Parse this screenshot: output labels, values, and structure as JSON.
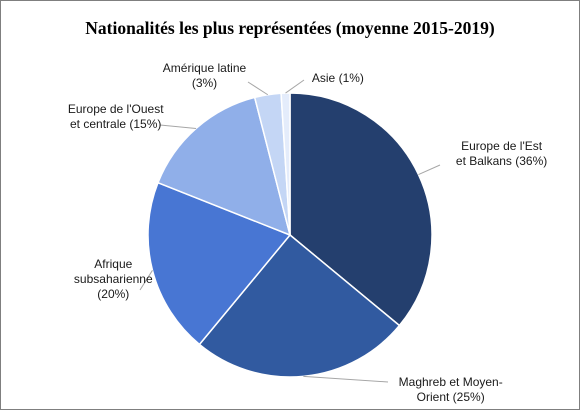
{
  "chart_data": {
    "type": "pie",
    "title": "Nationalités les plus représentées (moyenne 2015-2019)",
    "unit": "%",
    "slices": [
      {
        "name": "Europe de l'Est et Balkans",
        "value": 36,
        "label_lines": [
          "Europe de l'Est",
          "et Balkans (36%)"
        ],
        "color": "#243f6e"
      },
      {
        "name": "Maghreb et Moyen-Orient",
        "value": 25,
        "label_lines": [
          "Maghreb et Moyen-",
          "Orient (25%)"
        ],
        "color": "#315aa0"
      },
      {
        "name": "Afrique subsaharienne",
        "value": 20,
        "label_lines": [
          "Afrique",
          "subsaharienne",
          "(20%)"
        ],
        "color": "#4876d3"
      },
      {
        "name": "Europe de l'Ouest et centrale",
        "value": 15,
        "label_lines": [
          "Europe de l'Ouest",
          "et centrale (15%)"
        ],
        "color": "#90afe9"
      },
      {
        "name": "Amérique latine",
        "value": 3,
        "label_lines": [
          "Amérique latine",
          "(3%)"
        ],
        "color": "#c4d6f5"
      },
      {
        "name": "Asie",
        "value": 1,
        "label_lines": [
          "Asie (1%)"
        ],
        "color": "#e4ecfb"
      }
    ],
    "legend": "none"
  }
}
